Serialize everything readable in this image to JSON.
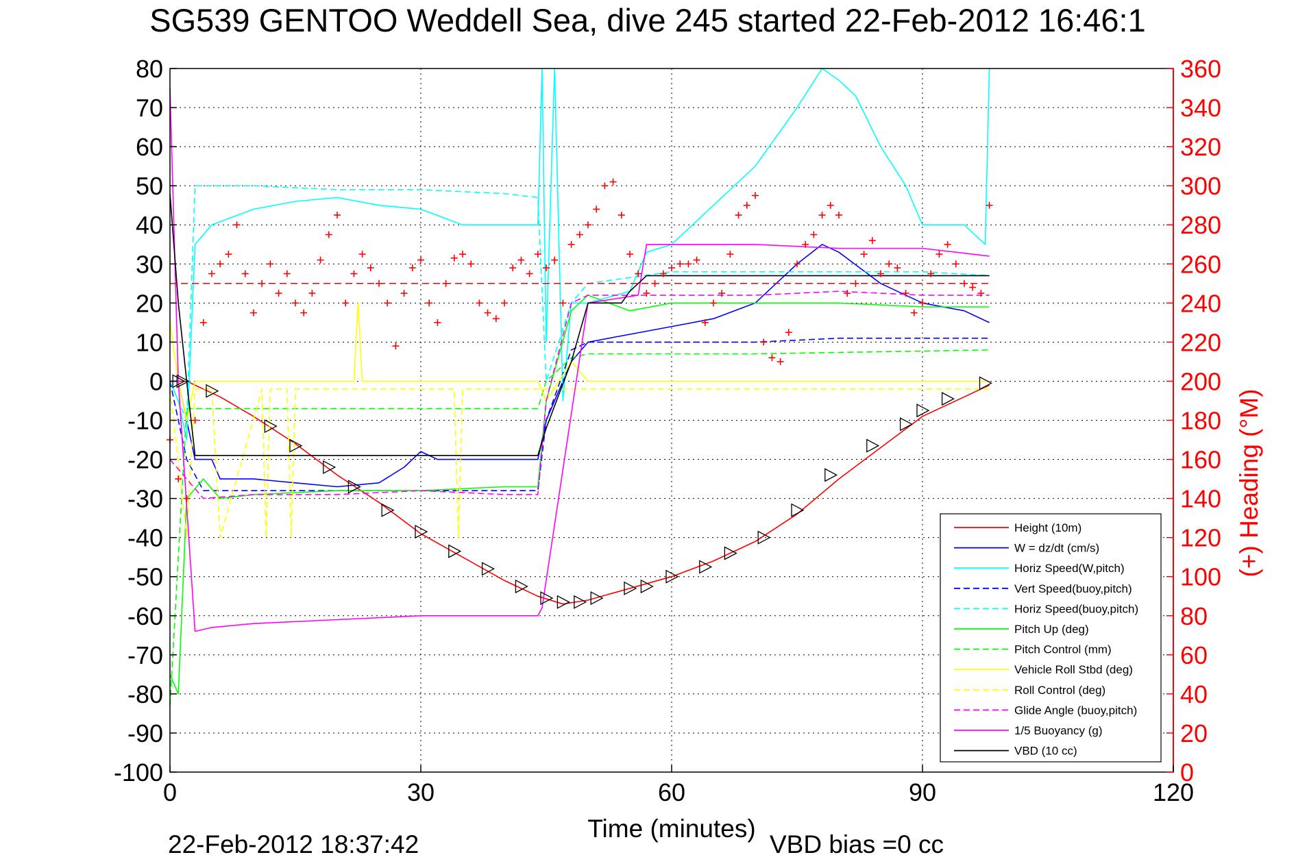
{
  "chart_data": {
    "type": "line",
    "title": "SG539 GENTOO Weddell Sea, dive 245 started 22-Feb-2012 16:46:1",
    "xlabel": "Time (minutes)",
    "ylabel": "",
    "y2label": "(+) Heading (°M)",
    "footer_left": "22-Feb-2012 18:37:42",
    "footer_right": "VBD bias =0 cc",
    "xlim": [
      0,
      120
    ],
    "ylim": [
      -100,
      80
    ],
    "y2lim": [
      0,
      360
    ],
    "x_ticks": [
      0,
      30,
      60,
      90,
      120
    ],
    "y_ticks": [
      80,
      70,
      60,
      50,
      40,
      30,
      20,
      10,
      0,
      -10,
      -20,
      -30,
      -40,
      -50,
      -60,
      -70,
      -80,
      -90,
      -100
    ],
    "y2_ticks": [
      360,
      340,
      320,
      300,
      280,
      260,
      240,
      220,
      200,
      180,
      160,
      140,
      120,
      100,
      80,
      60,
      40,
      20,
      0
    ],
    "grid": true,
    "legend_position": "bottom-right",
    "colors": {
      "heading_axis": "#ff0000",
      "height": "#ff0000",
      "w": "#0000ff",
      "horiz_speed": "#00ffff",
      "pitch": "#00ff00",
      "roll": "#ffff00",
      "glide": "#ff00ff",
      "buoyancy": "#ff00ff",
      "vbd": "#000000"
    },
    "series": [
      {
        "name": "Height (10m)",
        "color": "#ff0000",
        "dash": false,
        "x": [
          0,
          1,
          2,
          4,
          6,
          10,
          15,
          20,
          25,
          30,
          35,
          40,
          44,
          47,
          50,
          55,
          60,
          65,
          70,
          75,
          80,
          85,
          90,
          95,
          98
        ],
        "y": [
          0,
          0,
          0,
          -2,
          -4,
          -9,
          -16,
          -24,
          -31,
          -39,
          -45,
          -51,
          -55,
          -57,
          -56,
          -53,
          -50,
          -46,
          -41,
          -34,
          -25,
          -17,
          -9,
          -4,
          -1
        ]
      },
      {
        "name": "W = dz/dt (cm/s)",
        "color": "#0000ff",
        "dash": false,
        "x": [
          0,
          1,
          2,
          3,
          5,
          6,
          10,
          15,
          20,
          25,
          28,
          30,
          32,
          35,
          40,
          44,
          45,
          46,
          47,
          48,
          50,
          55,
          60,
          65,
          70,
          75,
          78,
          80,
          85,
          90,
          95,
          98
        ],
        "y": [
          0,
          0,
          -10,
          -20,
          -20,
          -25,
          -25,
          -26,
          -27,
          -26,
          -22,
          -18,
          -20,
          -20,
          -20,
          -20,
          -10,
          -5,
          0,
          5,
          10,
          12,
          14,
          16,
          20,
          30,
          35,
          33,
          25,
          20,
          18,
          15
        ]
      },
      {
        "name": "Horiz Speed(W,pitch)",
        "color": "#00ffff",
        "dash": false,
        "x": [
          0,
          1,
          2,
          3,
          5,
          10,
          15,
          20,
          25,
          30,
          35,
          40,
          44,
          44.5,
          45,
          46,
          47,
          48,
          50,
          55,
          57,
          60,
          65,
          70,
          75,
          78,
          80,
          82,
          85,
          88,
          90,
          95,
          97.5,
          98
        ],
        "y": [
          0,
          -5,
          -15,
          35,
          40,
          44,
          46,
          47,
          45,
          44,
          40,
          40,
          40,
          80,
          10,
          80,
          -5,
          20,
          20,
          23,
          33,
          35,
          45,
          55,
          70,
          80,
          77,
          73,
          60,
          50,
          40,
          40,
          35,
          80
        ]
      },
      {
        "name": "Vert Speed(buoy,pitch)",
        "color": "#0000ff",
        "dash": true,
        "x": [
          0,
          2,
          4,
          10,
          20,
          30,
          40,
          44,
          45,
          48,
          50,
          60,
          70,
          80,
          90,
          98
        ],
        "y": [
          0,
          -20,
          -28,
          -28,
          -28,
          -28,
          -28,
          -28,
          -10,
          8,
          10,
          10,
          10,
          11,
          11,
          11
        ]
      },
      {
        "name": "Horiz Speed(buoy,pitch)",
        "color": "#00ffff",
        "dash": true,
        "x": [
          0,
          2,
          3,
          10,
          20,
          30,
          40,
          44,
          45,
          48,
          50,
          60,
          70,
          80,
          90,
          98
        ],
        "y": [
          0,
          -10,
          50,
          50,
          49,
          49,
          48,
          47,
          0,
          20,
          25,
          28,
          28,
          28,
          28,
          27
        ]
      },
      {
        "name": "Pitch Up (deg)",
        "color": "#00ff00",
        "dash": false,
        "x": [
          0,
          1,
          2,
          4,
          6,
          10,
          20,
          30,
          40,
          44,
          45,
          48,
          50,
          55,
          60,
          70,
          80,
          90,
          98
        ],
        "y": [
          -75,
          -80,
          -30,
          -25,
          -30,
          -29,
          -28,
          -28,
          -27,
          -27,
          -5,
          18,
          22,
          18,
          20,
          20,
          20,
          19,
          19
        ]
      },
      {
        "name": "Pitch Control (mm)",
        "color": "#00ff00",
        "dash": true,
        "x": [
          0,
          2,
          4,
          20,
          44,
          45,
          48,
          50,
          70,
          98
        ],
        "y": [
          -83,
          -7,
          -7,
          -7,
          -7,
          0,
          6,
          7,
          7,
          8
        ]
      },
      {
        "name": "Vehicle Roll Stbd (deg)",
        "color": "#ffff00",
        "dash": false,
        "x": [
          0,
          1,
          2,
          3,
          10,
          20,
          22,
          22.5,
          23,
          30,
          40,
          44,
          45,
          48,
          50,
          60,
          70,
          80,
          90,
          98
        ],
        "y": [
          15,
          0,
          -10,
          0,
          0,
          0,
          0,
          20,
          0,
          0,
          0,
          0,
          -5,
          5,
          0,
          0,
          0,
          0,
          0,
          0
        ]
      },
      {
        "name": "Roll Control (deg)",
        "color": "#ffff00",
        "dash": true,
        "x": [
          0,
          2,
          3,
          5,
          6,
          11,
          11.5,
          12,
          14,
          14.5,
          15,
          30,
          34,
          34.5,
          35,
          98
        ],
        "y": [
          -2,
          -40,
          -2,
          -2,
          -40,
          -2,
          -40,
          -2,
          -2,
          -40,
          -2,
          -2,
          -2,
          -40,
          -2,
          -2
        ]
      },
      {
        "name": "Glide Angle (buoy,pitch)",
        "color": "#ff00ff",
        "dash": true,
        "x": [
          0,
          2,
          4,
          10,
          20,
          30,
          40,
          44,
          45,
          48,
          50,
          60,
          70,
          80,
          90,
          98
        ],
        "y": [
          -20,
          -25,
          -30,
          -29,
          -29,
          -28,
          -29,
          -29,
          -5,
          20,
          22,
          22,
          22,
          23,
          22,
          22
        ]
      },
      {
        "name": "1/5 Buoyancy (g)",
        "color": "#ff00ff",
        "dash": false,
        "x": [
          0,
          1,
          3,
          5,
          10,
          20,
          30,
          40,
          44,
          44.5,
          50,
          56,
          57,
          60,
          70,
          80,
          90,
          98
        ],
        "y": [
          75,
          0,
          -64,
          -63,
          -62,
          -61,
          -60,
          -60,
          -60,
          -58,
          20,
          22,
          35,
          35,
          35,
          34,
          34,
          32
        ]
      },
      {
        "name": "VBD (10 cc)",
        "color": "#000000",
        "dash": false,
        "x": [
          0,
          1,
          2,
          3,
          10,
          20,
          30,
          40,
          44,
          45,
          48,
          50,
          54,
          55,
          57,
          60,
          70,
          80,
          90,
          98
        ],
        "y": [
          48,
          20,
          0,
          -19,
          -19,
          -19,
          -19,
          -19,
          -19,
          -12,
          5,
          20,
          20,
          23,
          27,
          27,
          27,
          27,
          27,
          27
        ]
      }
    ],
    "heading_points": {
      "name": "Heading (+)",
      "axis": "right",
      "color": "#ff0000",
      "x": [
        0,
        1,
        2,
        3,
        4,
        5,
        6,
        7,
        8,
        9,
        10,
        11,
        12,
        13,
        14,
        15,
        16,
        17,
        18,
        19,
        20,
        21,
        22,
        23,
        24,
        25,
        26,
        27,
        28,
        29,
        30,
        31,
        32,
        33,
        34,
        35,
        36,
        37,
        38,
        39,
        40,
        41,
        42,
        43,
        44,
        45,
        46,
        47,
        48,
        49,
        50,
        51,
        52,
        53,
        54,
        55,
        56,
        57,
        58,
        59,
        60,
        61,
        62,
        63,
        64,
        65,
        66,
        67,
        68,
        69,
        70,
        71,
        72,
        73,
        74,
        75,
        76,
        77,
        78,
        79,
        80,
        81,
        82,
        83,
        84,
        85,
        86,
        87,
        88,
        89,
        90,
        91,
        92,
        93,
        94,
        95,
        96,
        97,
        98
      ],
      "y": [
        170,
        150,
        140,
        180,
        230,
        255,
        260,
        265,
        280,
        255,
        235,
        250,
        260,
        245,
        255,
        240,
        235,
        245,
        262,
        275,
        285,
        240,
        255,
        265,
        258,
        250,
        240,
        218,
        245,
        258,
        262,
        240,
        230,
        250,
        263,
        265,
        260,
        240,
        235,
        232,
        240,
        258,
        262,
        255,
        265,
        258,
        262,
        240,
        270,
        275,
        280,
        288,
        300,
        302,
        285,
        265,
        255,
        245,
        250,
        255,
        258,
        260,
        260,
        262,
        230,
        240,
        245,
        265,
        285,
        290,
        295,
        220,
        212,
        210,
        225,
        260,
        270,
        275,
        285,
        290,
        285,
        245,
        250,
        265,
        272,
        255,
        260,
        258,
        245,
        235,
        240,
        255,
        265,
        270,
        260,
        250,
        248,
        245,
        290
      ]
    },
    "heading_reference": {
      "value": 250,
      "color": "#ff0000",
      "dash": true
    },
    "markers": {
      "shape": "triangle",
      "x": [
        1,
        1.5,
        5,
        12,
        15,
        19,
        22,
        26,
        30,
        34,
        38,
        42,
        45,
        47,
        49,
        51,
        55,
        57,
        60,
        64,
        67,
        71,
        75,
        79,
        84,
        88,
        90,
        93,
        97.5
      ],
      "y": [
        0,
        0,
        -2.5,
        -11.5,
        -16.5,
        -22,
        -27,
        -33,
        -38.5,
        -43.5,
        -48,
        -52.5,
        -55.5,
        -56.5,
        -56.5,
        -55.5,
        -53,
        -52.5,
        -50,
        -47.5,
        -44,
        -40,
        -33,
        -24,
        -16.5,
        -11,
        -7.5,
        -4.5,
        -0.5
      ]
    }
  }
}
